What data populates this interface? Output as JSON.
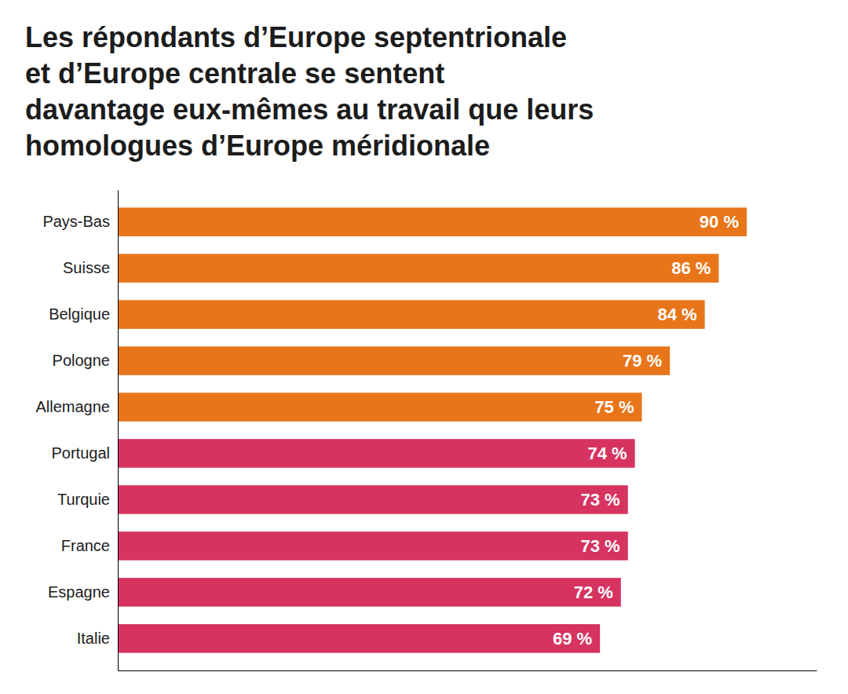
{
  "chart_data": {
    "type": "bar",
    "orientation": "horizontal",
    "title": [
      "Les répondants d’Europe septentrionale",
      "et d’Europe centrale se sentent",
      "davantage eux-mêmes au travail que leurs",
      "homologues d’Europe méridionale"
    ],
    "categories": [
      "Pays-Bas",
      "Suisse",
      "Belgique",
      "Pologne",
      "Allemagne",
      "Portugal",
      "Turquie",
      "France",
      "Espagne",
      "Italie"
    ],
    "values": [
      90,
      86,
      84,
      79,
      75,
      74,
      73,
      73,
      72,
      69
    ],
    "value_labels": [
      "90 %",
      "86 %",
      "84 %",
      "79 %",
      "75 %",
      "74 %",
      "73 %",
      "73 %",
      "72 %",
      "69 %"
    ],
    "colors": [
      "#E8751A",
      "#E8751A",
      "#E8751A",
      "#E8751A",
      "#E8751A",
      "#D63361",
      "#D63361",
      "#D63361",
      "#D63361",
      "#D63361"
    ],
    "xlim": [
      0,
      100
    ],
    "data_labels": true,
    "tick_labels": "y",
    "grid": false
  }
}
